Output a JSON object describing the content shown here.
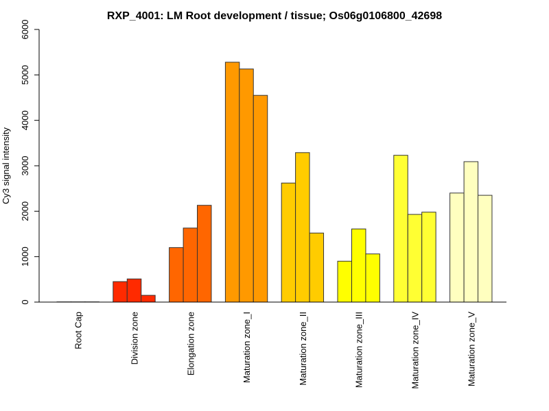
{
  "chart_data": {
    "type": "bar",
    "title": "RXP_4001: LM Root development / tissue; Os06g0106800_42698",
    "xlabel": "",
    "ylabel": "Cy3 signal intensity",
    "ylim": [
      0,
      6000
    ],
    "yticks": [
      "0",
      "1000",
      "2000",
      "3000",
      "4000",
      "5000",
      "6000"
    ],
    "ytick_values": [
      0,
      1000,
      2000,
      3000,
      4000,
      5000,
      6000
    ],
    "grid": false,
    "categories": [
      "Root Cap",
      "Division zone",
      "Elongation zone",
      "Maturation zone_I",
      "Maturation zone_II",
      "Maturation zone_III",
      "Maturation zone_IV",
      "Maturation zone_V"
    ],
    "colors": [
      "#FF0000",
      "#FF2A00",
      "#FF6600",
      "#FF9900",
      "#FFCC00",
      "#FFFF00",
      "#FFFF33",
      "#FFFFBF"
    ],
    "values": [
      [
        5,
        5,
        5
      ],
      [
        450,
        510,
        150
      ],
      [
        1200,
        1630,
        2130
      ],
      [
        5280,
        5130,
        4550
      ],
      [
        2620,
        3290,
        1520
      ],
      [
        900,
        1610,
        1060
      ],
      [
        3230,
        1930,
        1980
      ],
      [
        2400,
        3090,
        2350
      ]
    ]
  }
}
